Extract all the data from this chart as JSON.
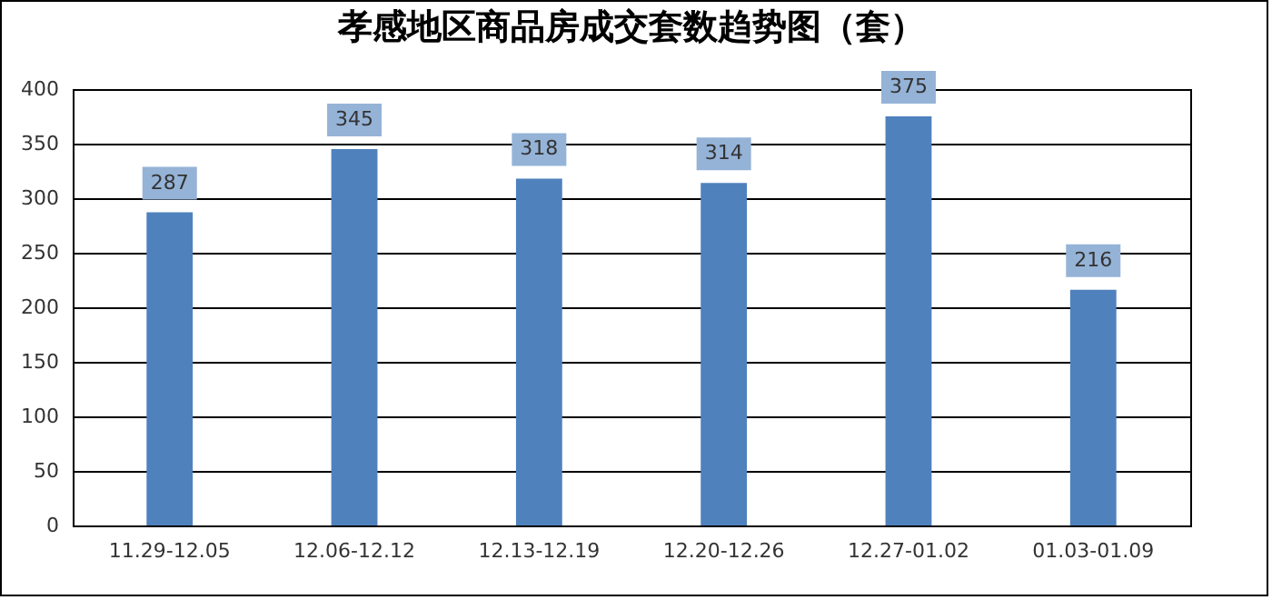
{
  "chart_data": {
    "type": "bar",
    "title": "孝感地区商品房成交套数趋势图（套）",
    "categories": [
      "11.29-12.05",
      "12.06-12.12",
      "12.13-12.19",
      "12.20-12.26",
      "12.27-01.02",
      "01.03-01.09"
    ],
    "values": [
      287,
      345,
      318,
      314,
      375,
      216
    ],
    "color": "#4f81bd",
    "ylim": [
      0,
      400
    ],
    "yticks": [
      0,
      50,
      100,
      150,
      200,
      250,
      300,
      350,
      400
    ],
    "grid": "y",
    "data_labels": true
  }
}
